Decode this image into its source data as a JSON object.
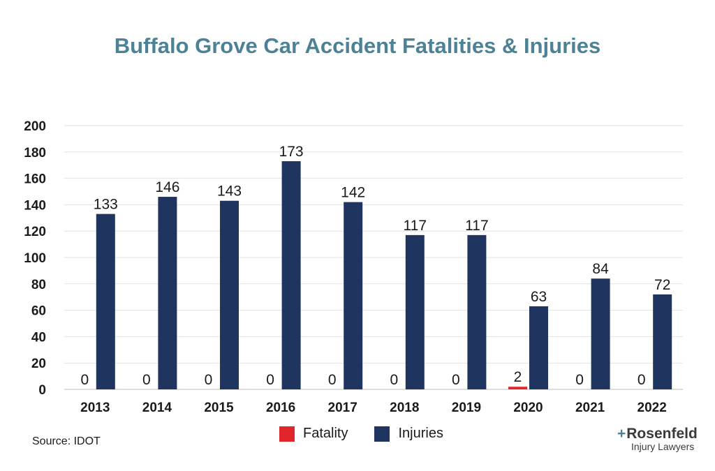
{
  "chart_data": {
    "type": "bar",
    "title": "Buffalo Grove Car Accident Fatalities & Injuries",
    "xlabel": "",
    "ylabel": "",
    "categories": [
      "2013",
      "2014",
      "2015",
      "2016",
      "2017",
      "2018",
      "2019",
      "2020",
      "2021",
      "2022"
    ],
    "series": [
      {
        "name": "Fatality",
        "color": "#e0262b",
        "values": [
          0,
          0,
          0,
          0,
          0,
          0,
          0,
          2,
          0,
          0
        ]
      },
      {
        "name": "Injuries",
        "color": "#1f3560",
        "values": [
          133,
          146,
          143,
          173,
          142,
          117,
          117,
          63,
          84,
          72
        ]
      }
    ],
    "ylim": [
      0,
      200
    ],
    "yticks": [
      0,
      20,
      40,
      60,
      80,
      100,
      120,
      140,
      160,
      180,
      200
    ],
    "grid": true,
    "legend": "bottom-center",
    "data_labels": true
  },
  "source": "Source: IDOT",
  "logo": {
    "brand": "Rosenfeld",
    "tagline": "Injury Lawyers"
  }
}
